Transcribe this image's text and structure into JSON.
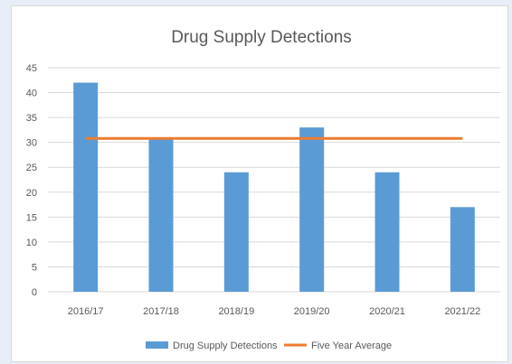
{
  "chart_data": {
    "type": "bar",
    "title": "Drug Supply Detections",
    "categories": [
      "2016/17",
      "2017/18",
      "2018/19",
      "2019/20",
      "2020/21",
      "2021/22"
    ],
    "series": [
      {
        "name": "Drug Supply Detections",
        "type": "bar",
        "color": "#5b9bd5",
        "values": [
          42,
          31,
          24,
          33,
          24,
          17
        ]
      },
      {
        "name": "Five Year Average",
        "type": "line",
        "color": "#ed7d31",
        "values": [
          30.8,
          30.8,
          30.8,
          30.8,
          30.8,
          30.8
        ]
      }
    ],
    "xlabel": "",
    "ylabel": "",
    "ylim": [
      0,
      45
    ],
    "yticks": [
      0,
      5,
      10,
      15,
      20,
      25,
      30,
      35,
      40,
      45
    ],
    "grid": true,
    "legend_position": "bottom"
  },
  "colors": {
    "grid": "#d9d9d9",
    "text": "#595959"
  }
}
